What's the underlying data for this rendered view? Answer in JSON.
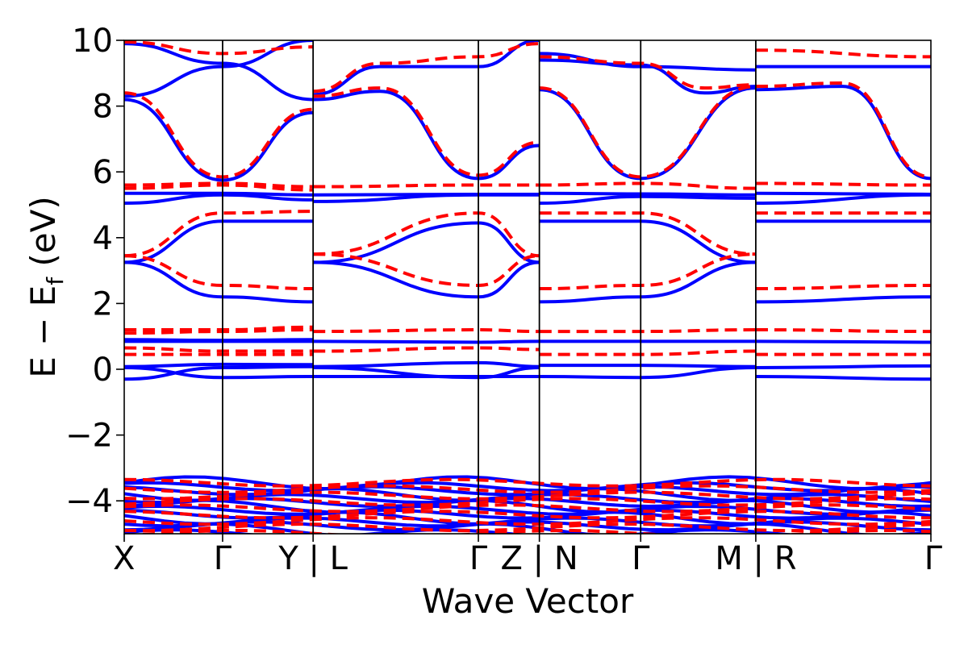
{
  "chart_data": {
    "type": "line",
    "title": "",
    "xlabel": "Wave Vector",
    "ylabel_parts": {
      "main": "E − E",
      "sub": "f",
      "unit": " (eV)"
    },
    "ylim": [
      -5,
      10
    ],
    "yticks": [
      {
        "value": 10,
        "label": "10"
      },
      {
        "value": 8,
        "label": "8"
      },
      {
        "value": 6,
        "label": "6"
      },
      {
        "value": 4,
        "label": "4"
      },
      {
        "value": 2,
        "label": "2"
      },
      {
        "value": 0,
        "label": "0"
      },
      {
        "value": -2,
        "label": "−2"
      },
      {
        "value": -4,
        "label": "−4"
      }
    ],
    "xlim": [
      0,
      8.2
    ],
    "xticks": [
      {
        "x": 0.0,
        "label": "X",
        "anchor": "start"
      },
      {
        "x": 1.0,
        "label": "Γ",
        "anchor": "middle"
      },
      {
        "x": 1.92,
        "label": "Y | L",
        "anchor": "middle"
      },
      {
        "x": 3.6,
        "label": "Γ",
        "anchor": "middle"
      },
      {
        "x": 4.22,
        "label": "Z | N",
        "anchor": "middle"
      },
      {
        "x": 5.25,
        "label": "Γ",
        "anchor": "middle"
      },
      {
        "x": 6.42,
        "label": "M | R",
        "anchor": "middle"
      },
      {
        "x": 8.2,
        "label": "Γ",
        "anchor": "end"
      }
    ],
    "vlines": [
      1.0,
      1.92,
      3.6,
      4.22,
      5.25,
      6.42
    ],
    "series_styles": {
      "model": {
        "color": "#0000ff",
        "dash": "none",
        "width": 4
      },
      "reference": {
        "color": "#ff0000",
        "dash": "15,8",
        "width": 4
      }
    },
    "series": [
      {
        "style": "model",
        "x": [
          0,
          1.0,
          1.92
        ],
        "y": [
          -0.3,
          0.05,
          0.08
        ]
      },
      {
        "style": "model",
        "x": [
          0,
          1.0,
          1.92
        ],
        "y": [
          0.05,
          -0.25,
          -0.22
        ]
      },
      {
        "style": "model",
        "x": [
          0,
          1.0,
          1.92
        ],
        "y": [
          0.08,
          0.15,
          0.14
        ]
      },
      {
        "style": "model",
        "x": [
          0,
          1.0,
          1.92
        ],
        "y": [
          0.85,
          0.85,
          0.85
        ]
      },
      {
        "style": "model",
        "x": [
          0,
          1.0,
          1.92
        ],
        "y": [
          0.9,
          0.88,
          0.9
        ]
      },
      {
        "style": "model",
        "x": [
          0,
          1.0,
          1.92
        ],
        "y": [
          3.25,
          2.2,
          2.05
        ]
      },
      {
        "style": "model",
        "x": [
          0,
          1.0,
          1.92
        ],
        "y": [
          3.25,
          4.5,
          4.5
        ]
      },
      {
        "style": "model",
        "x": [
          0,
          1.0,
          1.92
        ],
        "y": [
          5.05,
          5.3,
          5.15
        ]
      },
      {
        "style": "model",
        "x": [
          0,
          1.0,
          1.92
        ],
        "y": [
          5.35,
          5.35,
          5.3
        ]
      },
      {
        "style": "model",
        "x": [
          0,
          1.0,
          1.92
        ],
        "y": [
          8.2,
          5.75,
          7.8
        ]
      },
      {
        "style": "model",
        "x": [
          0,
          1.0,
          1.92
        ],
        "y": [
          8.3,
          9.2,
          10.0
        ]
      },
      {
        "style": "model",
        "x": [
          0,
          1.0,
          1.92
        ],
        "y": [
          9.9,
          9.3,
          8.2
        ]
      },
      {
        "style": "reference",
        "x": [
          0,
          1.0,
          1.92
        ],
        "y": [
          0.45,
          0.45,
          0.45
        ]
      },
      {
        "style": "reference",
        "x": [
          0,
          1.0,
          1.92
        ],
        "y": [
          0.65,
          0.55,
          0.55
        ]
      },
      {
        "style": "reference",
        "x": [
          0,
          1.0,
          1.92
        ],
        "y": [
          1.1,
          1.15,
          1.2
        ]
      },
      {
        "style": "reference",
        "x": [
          0,
          1.0,
          1.92
        ],
        "y": [
          1.2,
          1.2,
          1.28
        ]
      },
      {
        "style": "reference",
        "x": [
          0,
          1.0,
          1.92
        ],
        "y": [
          3.45,
          2.55,
          2.45
        ]
      },
      {
        "style": "reference",
        "x": [
          0,
          1.0,
          1.92
        ],
        "y": [
          3.45,
          4.75,
          4.8
        ]
      },
      {
        "style": "reference",
        "x": [
          0,
          1.0,
          1.92
        ],
        "y": [
          5.5,
          5.6,
          5.45
        ]
      },
      {
        "style": "reference",
        "x": [
          0,
          1.0,
          1.92
        ],
        "y": [
          5.6,
          5.65,
          5.55
        ]
      },
      {
        "style": "reference",
        "x": [
          0,
          1.0,
          1.92
        ],
        "y": [
          8.4,
          5.85,
          7.9
        ]
      },
      {
        "style": "reference",
        "x": [
          0,
          1.0,
          1.92
        ],
        "y": [
          9.95,
          9.6,
          9.8
        ]
      },
      {
        "style": "model",
        "x": [
          1.92,
          3.6,
          4.22
        ],
        "y": [
          0.05,
          -0.25,
          0.05
        ]
      },
      {
        "style": "model",
        "x": [
          1.92,
          3.6,
          4.22
        ],
        "y": [
          0.08,
          0.2,
          0.08
        ]
      },
      {
        "style": "model",
        "x": [
          1.92,
          3.6,
          4.22
        ],
        "y": [
          -0.22,
          -0.22,
          -0.22
        ]
      },
      {
        "style": "model",
        "x": [
          1.92,
          3.6,
          4.22
        ],
        "y": [
          0.85,
          0.82,
          0.85
        ]
      },
      {
        "style": "model",
        "x": [
          1.92,
          3.6,
          4.22
        ],
        "y": [
          3.25,
          2.2,
          3.25
        ]
      },
      {
        "style": "model",
        "x": [
          1.92,
          3.6,
          4.22
        ],
        "y": [
          3.25,
          4.45,
          3.25
        ]
      },
      {
        "style": "model",
        "x": [
          1.92,
          3.6,
          4.22
        ],
        "y": [
          5.1,
          5.3,
          5.3
        ]
      },
      {
        "style": "model",
        "x": [
          1.92,
          3.6,
          4.22
        ],
        "y": [
          5.3,
          5.32,
          5.32
        ]
      },
      {
        "style": "model",
        "x": [
          1.92,
          2.6,
          3.6,
          4.22
        ],
        "y": [
          8.2,
          8.45,
          5.8,
          6.8
        ]
      },
      {
        "style": "model",
        "x": [
          1.92,
          2.6,
          3.6,
          4.22
        ],
        "y": [
          8.35,
          9.2,
          9.2,
          10.0
        ]
      },
      {
        "style": "reference",
        "x": [
          1.92,
          3.6,
          4.22
        ],
        "y": [
          0.55,
          0.65,
          0.6
        ]
      },
      {
        "style": "reference",
        "x": [
          1.92,
          3.6,
          4.22
        ],
        "y": [
          1.15,
          1.2,
          1.15
        ]
      },
      {
        "style": "reference",
        "x": [
          1.92,
          3.6,
          4.22
        ],
        "y": [
          3.5,
          2.55,
          3.45
        ]
      },
      {
        "style": "reference",
        "x": [
          1.92,
          3.6,
          4.22
        ],
        "y": [
          3.5,
          4.75,
          3.45
        ]
      },
      {
        "style": "reference",
        "x": [
          1.92,
          3.6,
          4.22
        ],
        "y": [
          5.55,
          5.6,
          5.6
        ]
      },
      {
        "style": "reference",
        "x": [
          1.92,
          2.6,
          3.6,
          4.22
        ],
        "y": [
          8.3,
          8.55,
          5.9,
          6.9
        ]
      },
      {
        "style": "reference",
        "x": [
          1.92,
          2.6,
          3.6,
          4.22
        ],
        "y": [
          8.45,
          9.3,
          9.5,
          9.9
        ]
      },
      {
        "style": "model",
        "x": [
          4.22,
          5.25,
          6.42
        ],
        "y": [
          -0.22,
          -0.25,
          0.05
        ]
      },
      {
        "style": "model",
        "x": [
          4.22,
          5.25,
          6.42
        ],
        "y": [
          0.12,
          0.12,
          0.08
        ]
      },
      {
        "style": "model",
        "x": [
          4.22,
          5.25,
          6.42
        ],
        "y": [
          0.85,
          0.85,
          0.85
        ]
      },
      {
        "style": "model",
        "x": [
          4.22,
          5.25,
          6.42
        ],
        "y": [
          2.05,
          2.2,
          3.25
        ]
      },
      {
        "style": "model",
        "x": [
          4.22,
          5.25,
          6.42
        ],
        "y": [
          4.5,
          4.5,
          3.25
        ]
      },
      {
        "style": "model",
        "x": [
          4.22,
          5.25,
          6.42
        ],
        "y": [
          5.05,
          5.25,
          5.2
        ]
      },
      {
        "style": "model",
        "x": [
          4.22,
          5.25,
          6.42
        ],
        "y": [
          5.35,
          5.33,
          5.3
        ]
      },
      {
        "style": "model",
        "x": [
          4.22,
          5.25,
          6.42
        ],
        "y": [
          8.5,
          5.8,
          8.55
        ]
      },
      {
        "style": "model",
        "x": [
          4.22,
          5.25,
          5.9,
          6.42
        ],
        "y": [
          9.4,
          9.25,
          8.4,
          8.6
        ]
      },
      {
        "style": "model",
        "x": [
          4.22,
          5.25,
          6.42
        ],
        "y": [
          9.6,
          9.2,
          9.1
        ]
      },
      {
        "style": "reference",
        "x": [
          4.22,
          5.25,
          6.42
        ],
        "y": [
          0.45,
          0.45,
          0.55
        ]
      },
      {
        "style": "reference",
        "x": [
          4.22,
          5.25,
          6.42
        ],
        "y": [
          1.15,
          1.15,
          1.2
        ]
      },
      {
        "style": "reference",
        "x": [
          4.22,
          5.25,
          6.42
        ],
        "y": [
          2.45,
          2.55,
          3.5
        ]
      },
      {
        "style": "reference",
        "x": [
          4.22,
          5.25,
          6.42
        ],
        "y": [
          4.75,
          4.75,
          3.5
        ]
      },
      {
        "style": "reference",
        "x": [
          4.22,
          5.25,
          6.42
        ],
        "y": [
          5.6,
          5.65,
          5.5
        ]
      },
      {
        "style": "reference",
        "x": [
          4.22,
          5.25,
          6.42
        ],
        "y": [
          8.55,
          5.85,
          8.6
        ]
      },
      {
        "style": "reference",
        "x": [
          4.22,
          5.25,
          5.9,
          6.42
        ],
        "y": [
          9.5,
          9.3,
          8.55,
          8.65
        ]
      },
      {
        "style": "model",
        "x": [
          6.42,
          8.2
        ],
        "y": [
          -0.22,
          -0.3
        ]
      },
      {
        "style": "model",
        "x": [
          6.42,
          8.2
        ],
        "y": [
          0.05,
          0.1
        ]
      },
      {
        "style": "model",
        "x": [
          6.42,
          8.2
        ],
        "y": [
          0.85,
          0.82
        ]
      },
      {
        "style": "model",
        "x": [
          6.42,
          8.2
        ],
        "y": [
          2.05,
          2.2
        ]
      },
      {
        "style": "model",
        "x": [
          6.42,
          8.2
        ],
        "y": [
          4.5,
          4.5
        ]
      },
      {
        "style": "model",
        "x": [
          6.42,
          8.2
        ],
        "y": [
          5.05,
          5.3
        ]
      },
      {
        "style": "model",
        "x": [
          6.42,
          8.2
        ],
        "y": [
          5.35,
          5.32
        ]
      },
      {
        "style": "model",
        "x": [
          6.42,
          7.3,
          8.2
        ],
        "y": [
          8.5,
          8.6,
          5.8
        ]
      },
      {
        "style": "model",
        "x": [
          6.42,
          8.2
        ],
        "y": [
          9.2,
          9.2
        ]
      },
      {
        "style": "reference",
        "x": [
          6.42,
          8.2
        ],
        "y": [
          0.45,
          0.45
        ]
      },
      {
        "style": "reference",
        "x": [
          6.42,
          8.2
        ],
        "y": [
          1.2,
          1.15
        ]
      },
      {
        "style": "reference",
        "x": [
          6.42,
          8.2
        ],
        "y": [
          2.45,
          2.55
        ]
      },
      {
        "style": "reference",
        "x": [
          6.42,
          8.2
        ],
        "y": [
          4.75,
          4.75
        ]
      },
      {
        "style": "reference",
        "x": [
          6.42,
          8.2
        ],
        "y": [
          5.65,
          5.6
        ]
      },
      {
        "style": "reference",
        "x": [
          6.42,
          7.3,
          8.2
        ],
        "y": [
          8.6,
          8.7,
          5.85
        ]
      },
      {
        "style": "reference",
        "x": [
          6.42,
          8.2
        ],
        "y": [
          9.7,
          9.5
        ]
      }
    ],
    "low_band_region": {
      "y_range": [
        -5,
        -3.45
      ],
      "model_color": "#0000ff",
      "reference_color": "#ff0000"
    }
  }
}
